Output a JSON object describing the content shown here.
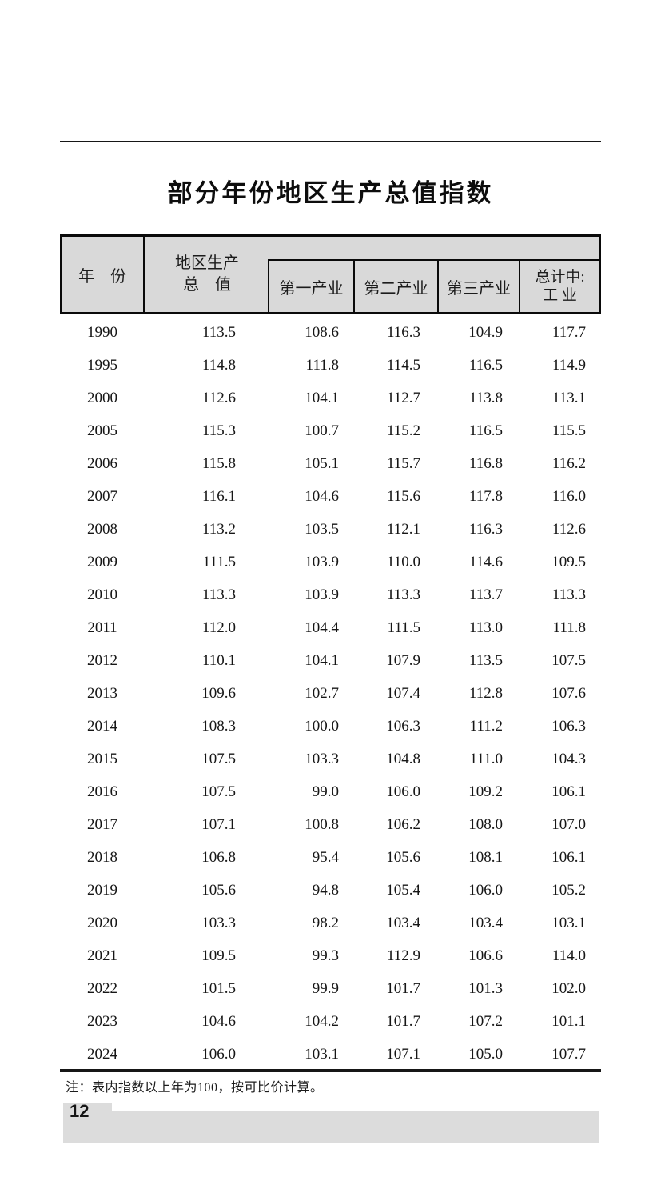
{
  "page": {
    "title": "部分年份地区生产总值指数",
    "footnote": "注：表内指数以上年为100，按可比价计算。",
    "page_number": "12"
  },
  "table": {
    "header": {
      "year_label": "年　份",
      "grp_line1": "地区生产",
      "grp_line2": "总　值",
      "sub_columns": [
        "第一产业",
        "第二产业",
        "第三产业"
      ],
      "industry_line1": "总计中:",
      "industry_line2": "工 业"
    },
    "columns": [
      "年份",
      "地区生产总值",
      "第一产业",
      "第二产业",
      "第三产业",
      "总计中:工业"
    ],
    "rows": [
      [
        "1990",
        "113.5",
        "108.6",
        "116.3",
        "104.9",
        "117.7"
      ],
      [
        "1995",
        "114.8",
        "111.8",
        "114.5",
        "116.5",
        "114.9"
      ],
      [
        "2000",
        "112.6",
        "104.1",
        "112.7",
        "113.8",
        "113.1"
      ],
      [
        "2005",
        "115.3",
        "100.7",
        "115.2",
        "116.5",
        "115.5"
      ],
      [
        "2006",
        "115.8",
        "105.1",
        "115.7",
        "116.8",
        "116.2"
      ],
      [
        "2007",
        "116.1",
        "104.6",
        "115.6",
        "117.8",
        "116.0"
      ],
      [
        "2008",
        "113.2",
        "103.5",
        "112.1",
        "116.3",
        "112.6"
      ],
      [
        "2009",
        "111.5",
        "103.9",
        "110.0",
        "114.6",
        "109.5"
      ],
      [
        "2010",
        "113.3",
        "103.9",
        "113.3",
        "113.7",
        "113.3"
      ],
      [
        "2011",
        "112.0",
        "104.4",
        "111.5",
        "113.0",
        "111.8"
      ],
      [
        "2012",
        "110.1",
        "104.1",
        "107.9",
        "113.5",
        "107.5"
      ],
      [
        "2013",
        "109.6",
        "102.7",
        "107.4",
        "112.8",
        "107.6"
      ],
      [
        "2014",
        "108.3",
        "100.0",
        "106.3",
        "111.2",
        "106.3"
      ],
      [
        "2015",
        "107.5",
        "103.3",
        "104.8",
        "111.0",
        "104.3"
      ],
      [
        "2016",
        "107.5",
        "99.0",
        "106.0",
        "109.2",
        "106.1"
      ],
      [
        "2017",
        "107.1",
        "100.8",
        "106.2",
        "108.0",
        "107.0"
      ],
      [
        "2018",
        "106.8",
        "95.4",
        "105.6",
        "108.1",
        "106.1"
      ],
      [
        "2019",
        "105.6",
        "94.8",
        "105.4",
        "106.0",
        "105.2"
      ],
      [
        "2020",
        "103.3",
        "98.2",
        "103.4",
        "103.4",
        "103.1"
      ],
      [
        "2021",
        "109.5",
        "99.3",
        "112.9",
        "106.6",
        "114.0"
      ],
      [
        "2022",
        "101.5",
        "99.9",
        "101.7",
        "101.3",
        "102.0"
      ],
      [
        "2023",
        "104.6",
        "104.2",
        "101.7",
        "107.2",
        "101.1"
      ],
      [
        "2024",
        "106.0",
        "103.1",
        "107.1",
        "105.0",
        "107.7"
      ]
    ]
  },
  "colors": {
    "header_fill": "#d9d9d9",
    "footer_fill": "#dcdcdc",
    "rule": "#161616"
  }
}
